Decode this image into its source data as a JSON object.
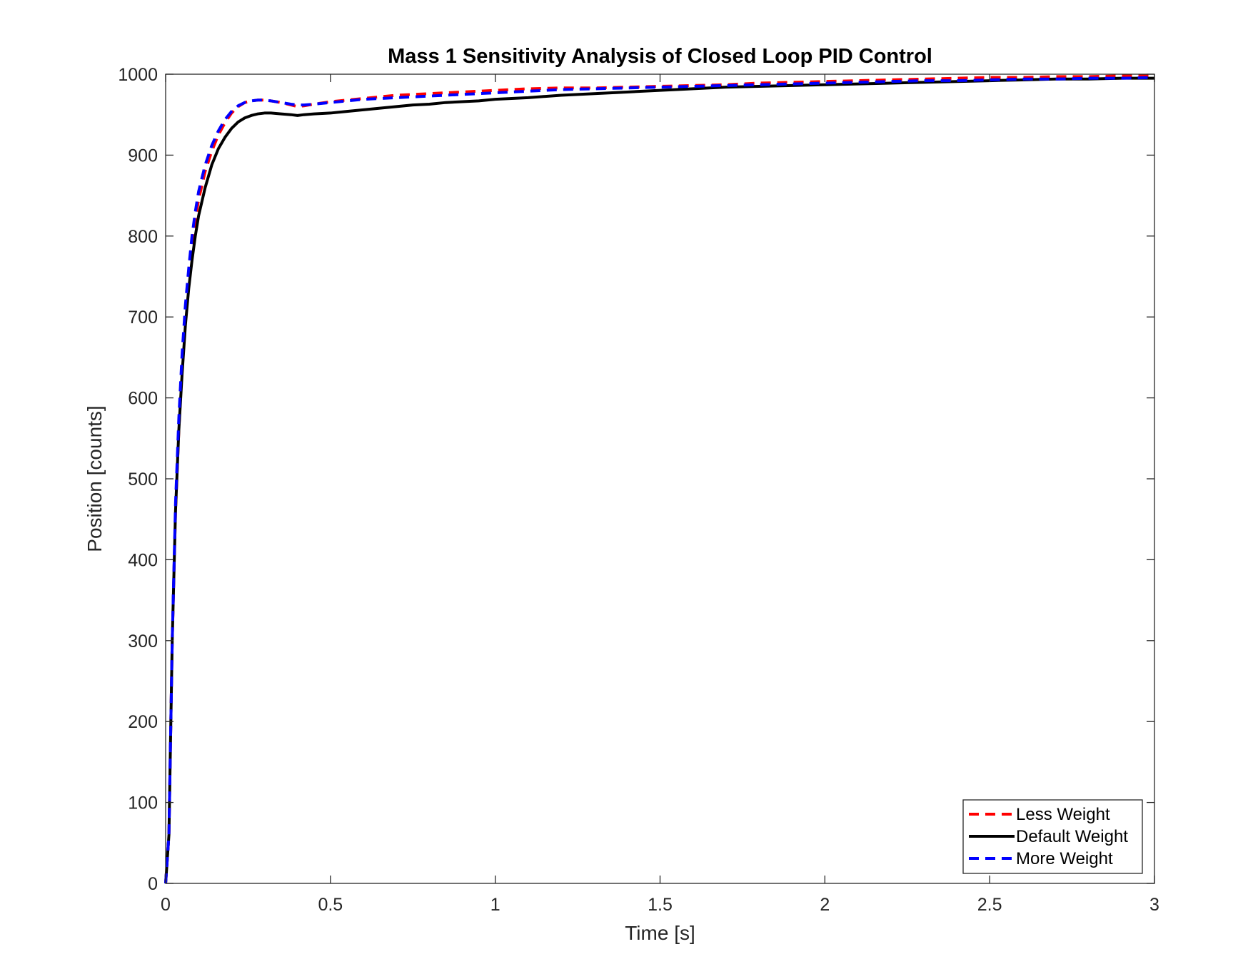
{
  "chart_data": {
    "type": "line",
    "title": "Mass 1 Sensitivity Analysis of Closed Loop PID Control",
    "xlabel": "Time [s]",
    "ylabel": "Position [counts]",
    "xlim": [
      0,
      3
    ],
    "ylim": [
      0,
      1000
    ],
    "xticks": [
      0,
      0.5,
      1,
      1.5,
      2,
      2.5,
      3
    ],
    "xtick_labels": [
      "0",
      "0.5",
      "1",
      "1.5",
      "2",
      "2.5",
      "3"
    ],
    "yticks": [
      0,
      100,
      200,
      300,
      400,
      500,
      600,
      700,
      800,
      900,
      1000
    ],
    "ytick_labels": [
      "0",
      "100",
      "200",
      "300",
      "400",
      "500",
      "600",
      "700",
      "800",
      "900",
      "1000"
    ],
    "grid": false,
    "box": true,
    "legend_position": "bottom-right",
    "series": [
      {
        "name": "Less Weight",
        "color": "#ff0000",
        "style": "dashed",
        "x": [
          0,
          0.01,
          0.02,
          0.03,
          0.04,
          0.05,
          0.06,
          0.07,
          0.08,
          0.09,
          0.1,
          0.12,
          0.14,
          0.16,
          0.18,
          0.2,
          0.22,
          0.24,
          0.26,
          0.28,
          0.3,
          0.32,
          0.35,
          0.38,
          0.4,
          0.42,
          0.45,
          0.5,
          0.55,
          0.6,
          0.65,
          0.7,
          0.75,
          0.8,
          0.85,
          0.9,
          0.95,
          1.0,
          1.1,
          1.2,
          1.3,
          1.4,
          1.5,
          1.6,
          1.7,
          1.8,
          1.9,
          2.0,
          2.1,
          2.2,
          2.3,
          2.4,
          2.5,
          2.6,
          2.7,
          2.8,
          2.9,
          3.0
        ],
        "y": [
          0,
          60,
          300,
          460,
          560,
          640,
          700,
          750,
          790,
          820,
          845,
          880,
          905,
          925,
          940,
          952,
          960,
          965,
          967,
          968,
          968,
          967,
          965,
          962,
          960,
          961,
          963,
          966,
          968,
          970,
          972,
          974,
          975,
          976,
          977,
          978,
          979,
          980,
          982,
          983,
          983,
          984,
          985,
          986,
          987,
          989,
          990,
          991,
          992,
          993,
          994,
          995,
          996,
          996,
          997,
          997,
          998,
          998
        ]
      },
      {
        "name": "Default Weight",
        "color": "#000000",
        "style": "solid",
        "x": [
          0,
          0.01,
          0.02,
          0.03,
          0.04,
          0.05,
          0.06,
          0.07,
          0.08,
          0.09,
          0.1,
          0.12,
          0.14,
          0.16,
          0.18,
          0.2,
          0.22,
          0.24,
          0.26,
          0.28,
          0.3,
          0.32,
          0.35,
          0.38,
          0.4,
          0.42,
          0.45,
          0.5,
          0.55,
          0.6,
          0.65,
          0.7,
          0.75,
          0.8,
          0.85,
          0.9,
          0.95,
          1.0,
          1.1,
          1.2,
          1.3,
          1.4,
          1.5,
          1.6,
          1.7,
          1.8,
          1.9,
          2.0,
          2.1,
          2.2,
          2.3,
          2.4,
          2.5,
          2.6,
          2.7,
          2.8,
          2.9,
          3.0
        ],
        "y": [
          0,
          60,
          300,
          460,
          560,
          630,
          690,
          735,
          770,
          800,
          825,
          860,
          888,
          908,
          922,
          933,
          941,
          946,
          949,
          951,
          952,
          952,
          951,
          950,
          949,
          950,
          951,
          952,
          954,
          956,
          958,
          960,
          962,
          963,
          965,
          966,
          967,
          969,
          971,
          974,
          976,
          978,
          980,
          982,
          984,
          985,
          986,
          987,
          988,
          989,
          990,
          991,
          992,
          993,
          994,
          994,
          995,
          995
        ]
      },
      {
        "name": "More Weight",
        "color": "#0000ff",
        "style": "dashed",
        "x": [
          0,
          0.01,
          0.02,
          0.03,
          0.04,
          0.05,
          0.06,
          0.07,
          0.08,
          0.09,
          0.1,
          0.12,
          0.14,
          0.16,
          0.18,
          0.2,
          0.22,
          0.24,
          0.26,
          0.28,
          0.3,
          0.32,
          0.35,
          0.38,
          0.4,
          0.42,
          0.45,
          0.5,
          0.55,
          0.6,
          0.65,
          0.7,
          0.75,
          0.8,
          0.85,
          0.9,
          0.95,
          1.0,
          1.1,
          1.2,
          1.3,
          1.4,
          1.5,
          1.6,
          1.7,
          1.8,
          1.9,
          2.0,
          2.1,
          2.2,
          2.3,
          2.4,
          2.5,
          2.6,
          2.7,
          2.8,
          2.9,
          3.0
        ],
        "y": [
          0,
          60,
          300,
          470,
          575,
          655,
          715,
          760,
          800,
          830,
          855,
          888,
          912,
          930,
          944,
          954,
          961,
          965,
          967,
          968,
          968,
          967,
          965,
          963,
          962,
          962,
          963,
          965,
          967,
          969,
          970,
          971,
          972,
          973,
          974,
          975,
          976,
          977,
          979,
          981,
          982,
          983,
          984,
          985,
          986,
          987,
          988,
          989,
          990,
          991,
          992,
          992,
          993,
          994,
          994,
          995,
          995,
          996
        ]
      }
    ]
  }
}
